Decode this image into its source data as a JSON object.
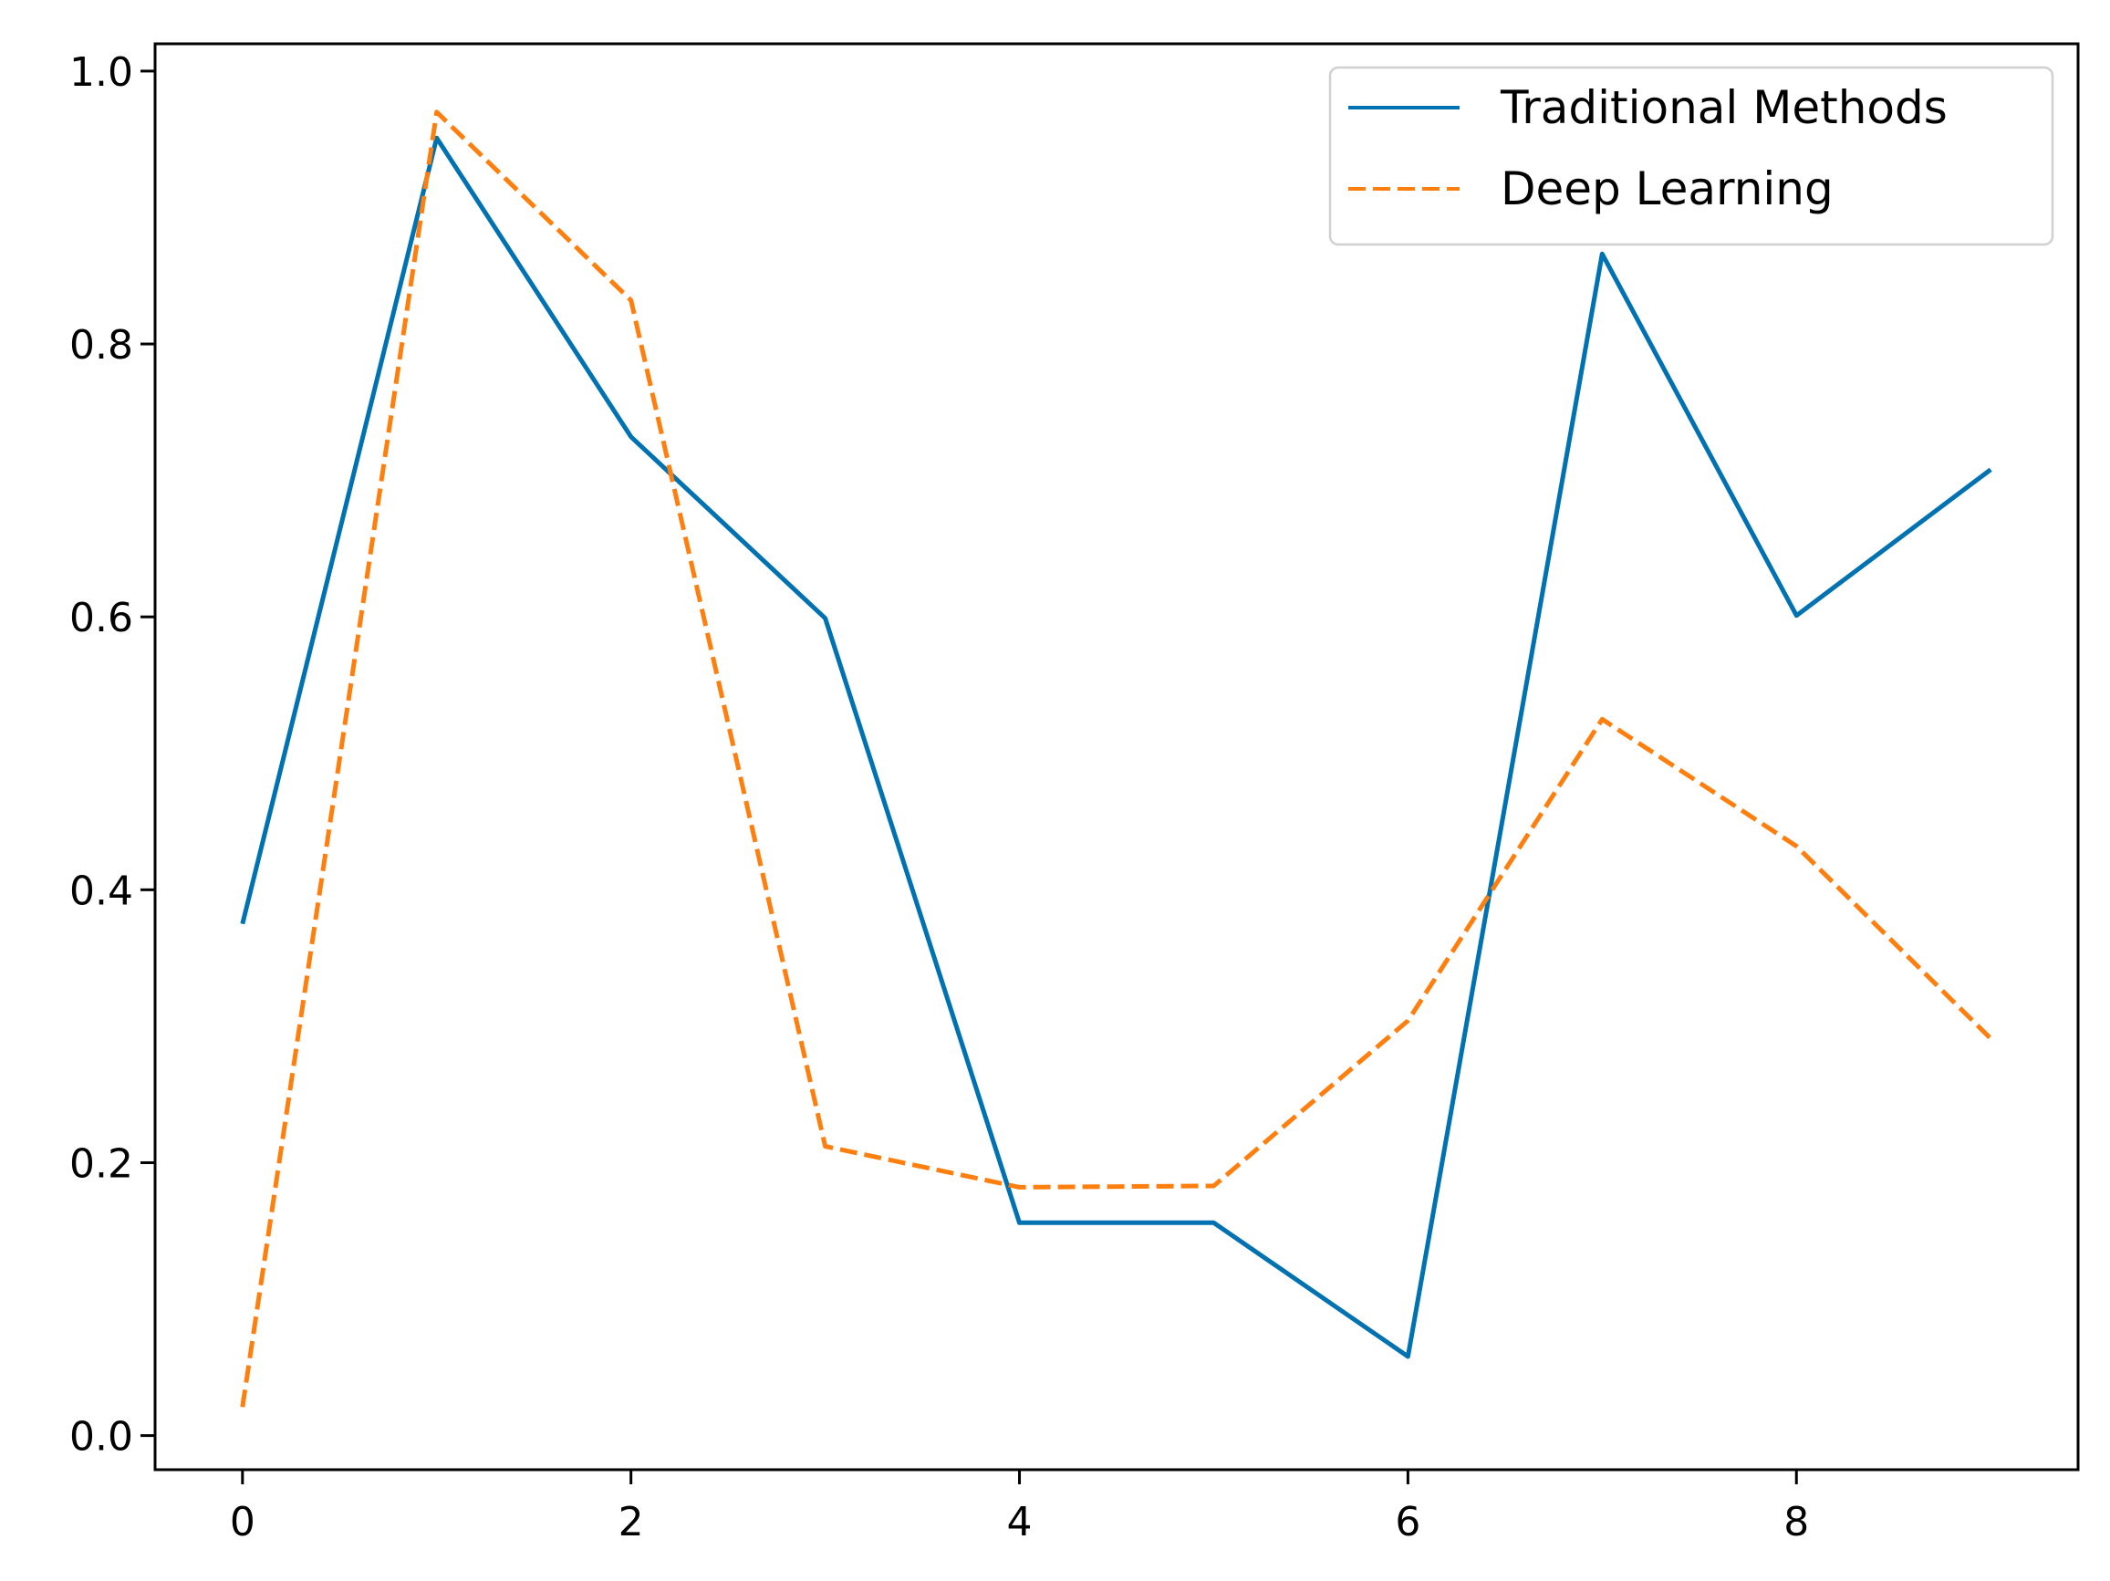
{
  "chart_data": {
    "type": "line",
    "x": [
      0,
      1,
      2,
      3,
      4,
      5,
      6,
      7,
      8,
      9
    ],
    "series": [
      {
        "name": "Traditional Methods",
        "values": [
          0.375,
          0.951,
          0.732,
          0.599,
          0.156,
          0.156,
          0.058,
          0.866,
          0.601,
          0.708
        ],
        "color": "#0072b2",
        "style": "solid"
      },
      {
        "name": "Deep Learning",
        "values": [
          0.021,
          0.97,
          0.832,
          0.212,
          0.182,
          0.183,
          0.304,
          0.525,
          0.432,
          0.291
        ],
        "color": "#ff7f0e",
        "style": "dashed"
      }
    ],
    "xlim": [
      -0.45,
      9.45
    ],
    "ylim": [
      -0.025,
      1.02
    ],
    "xticks": [
      0,
      2,
      4,
      6,
      8
    ],
    "yticks": [
      0.0,
      0.2,
      0.4,
      0.6,
      0.8,
      1.0
    ],
    "xtick_labels": [
      "0",
      "2",
      "4",
      "6",
      "8"
    ],
    "ytick_labels": [
      "0.0",
      "0.2",
      "0.4",
      "0.6",
      "0.8",
      "1.0"
    ],
    "grid": false,
    "legend_position": "top-right"
  }
}
